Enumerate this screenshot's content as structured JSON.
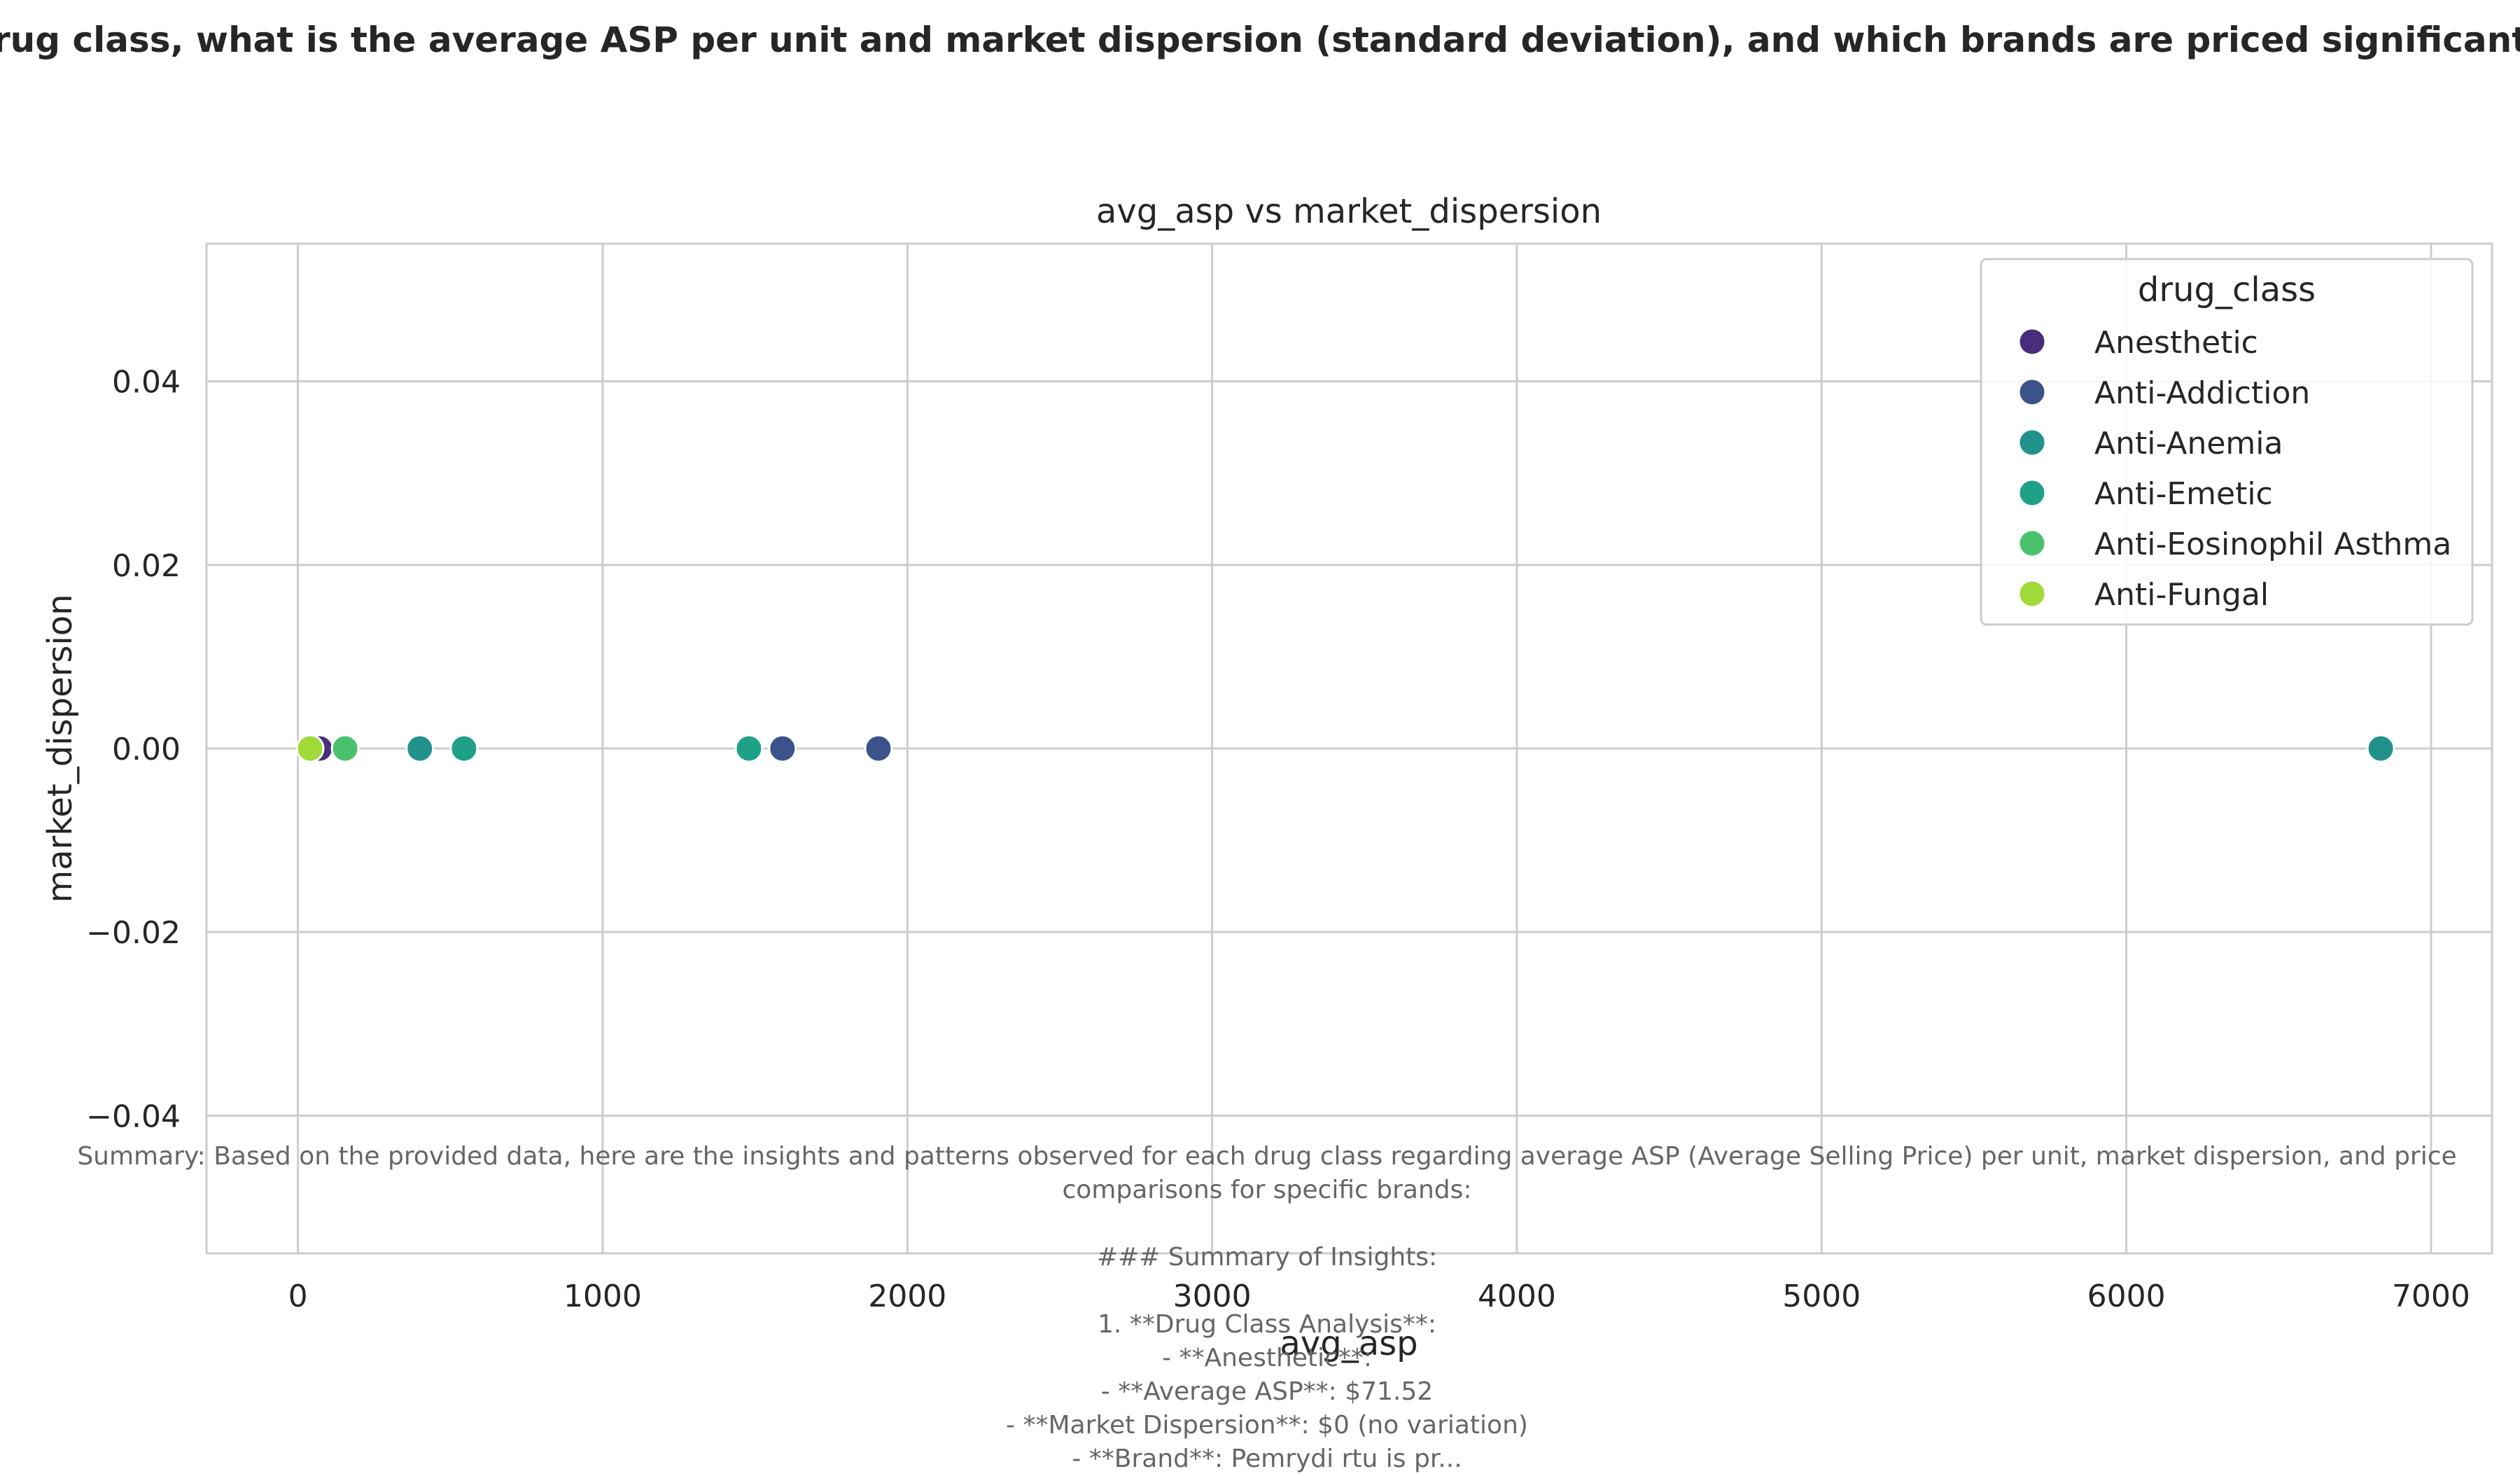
{
  "page_title": "rug class, what is the average ASP per unit and market dispersion (standard deviation), and which brands are priced significantly",
  "summary_text": "Summary: Based on the provided data, here are the insights and patterns observed for each drug class regarding average ASP (Average Selling Price) per unit, market dispersion, and price\ncomparisons for specific brands:\n\n### Summary of Insights:\n\n1. **Drug Class Analysis**:\n- **Anesthetic**:\n- **Average ASP**: $71.52\n- **Market Dispersion**: $0 (no variation)\n- **Brand**: Pemrydi rtu is pr...",
  "chart_data": {
    "type": "scatter",
    "title": "avg_asp vs market_dispersion",
    "xlabel": "avg_asp",
    "ylabel": "market_dispersion",
    "xlim": [
      -300,
      7200
    ],
    "ylim": [
      -0.055,
      0.055
    ],
    "xticks": [
      0,
      1000,
      2000,
      3000,
      4000,
      5000,
      6000,
      7000
    ],
    "xtick_labels": [
      "0",
      "1000",
      "2000",
      "3000",
      "4000",
      "5000",
      "6000",
      "7000"
    ],
    "yticks": [
      0.04,
      0.02,
      0.0,
      -0.02,
      -0.04
    ],
    "ytick_labels": [
      "0.04",
      "0.02",
      "0.00",
      "−0.02",
      "−0.04"
    ],
    "grid": true,
    "legend": {
      "title": "drug_class",
      "placement": "top-right",
      "entries": [
        {
          "name": "Anesthetic",
          "color": "#472d7b"
        },
        {
          "name": "Anti-Addiction",
          "color": "#3b528b"
        },
        {
          "name": "Anti-Anemia",
          "color": "#21918c"
        },
        {
          "name": "Anti-Emetic",
          "color": "#1fa187"
        },
        {
          "name": "Anti-Eosinophil Asthma",
          "color": "#4ac16d"
        },
        {
          "name": "Anti-Fungal",
          "color": "#a0da39"
        }
      ]
    },
    "points": [
      {
        "x": 71.52,
        "y": 0.0,
        "class": "Anesthetic"
      },
      {
        "x": 1590,
        "y": 0.0,
        "class": "Anti-Addiction"
      },
      {
        "x": 1905,
        "y": 0.0,
        "class": "Anti-Addiction"
      },
      {
        "x": 6835,
        "y": 0.0,
        "class": "Anti-Anemia"
      },
      {
        "x": 400,
        "y": 0.0,
        "class": "Anti-Anemia"
      },
      {
        "x": 545,
        "y": 0.0,
        "class": "Anti-Emetic"
      },
      {
        "x": 1480,
        "y": 0.0,
        "class": "Anti-Emetic"
      },
      {
        "x": 155,
        "y": 0.0,
        "class": "Anti-Eosinophil Asthma"
      },
      {
        "x": 40,
        "y": 0.0,
        "class": "Anti-Fungal"
      }
    ]
  }
}
